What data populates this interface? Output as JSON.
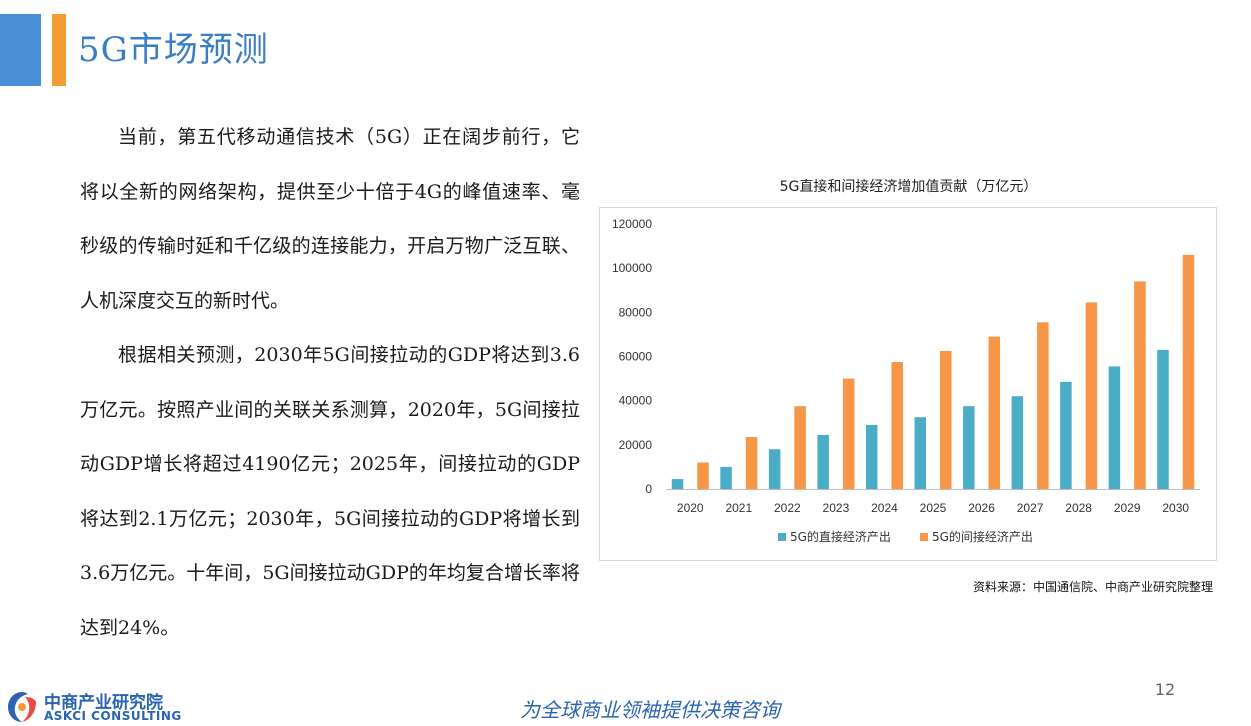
{
  "header": {
    "title": "5G市场预测"
  },
  "body": {
    "paragraphs": [
      "当前，第五代移动通信技术（5G）正在阔步前行，它将以全新的网络架构，提供至少十倍于4G的峰值速率、毫秒级的传输时延和千亿级的连接能力，开启万物广泛互联、人机深度交互的新时代。",
      "根据相关预测，2030年5G间接拉动的GDP将达到3.6万亿元。按照产业间的关联关系测算，2020年，5G间接拉动GDP增长将超过4190亿元；2025年，间接拉动的GDP将达到2.1万亿元；2030年，5G间接拉动的GDP将增长到3.6万亿元。十年间，5G间接拉动GDP的年均复合增长率将达到24%。"
    ]
  },
  "chart_data": {
    "type": "bar",
    "title": "5G直接和间接经济增加值贡献（万亿元）",
    "categories": [
      "2020",
      "2021",
      "2022",
      "2023",
      "2024",
      "2025",
      "2026",
      "2027",
      "2028",
      "2029",
      "2030"
    ],
    "series": [
      {
        "name": "5G的直接经济产出",
        "color": "#4bacc6",
        "values": [
          4500,
          10000,
          18000,
          24500,
          29000,
          32500,
          37500,
          42000,
          48500,
          55500,
          63000
        ]
      },
      {
        "name": "5G的间接经济产出",
        "color": "#f79646",
        "values": [
          12000,
          23500,
          37500,
          50000,
          57500,
          62500,
          69000,
          75500,
          84500,
          94000,
          106000
        ]
      }
    ],
    "ylim": [
      0,
      120000
    ],
    "yticks": [
      0,
      20000,
      40000,
      60000,
      80000,
      100000,
      120000
    ],
    "grid": false,
    "legend": "bottom"
  },
  "source": "资料来源：中国通信院、中商产业研究院整理",
  "page_number": "12",
  "footer": {
    "logo_cn": "中商产业研究院",
    "logo_en": "ASKCI CONSULTING",
    "slogan": "为全球商业领袖提供决策咨询"
  }
}
